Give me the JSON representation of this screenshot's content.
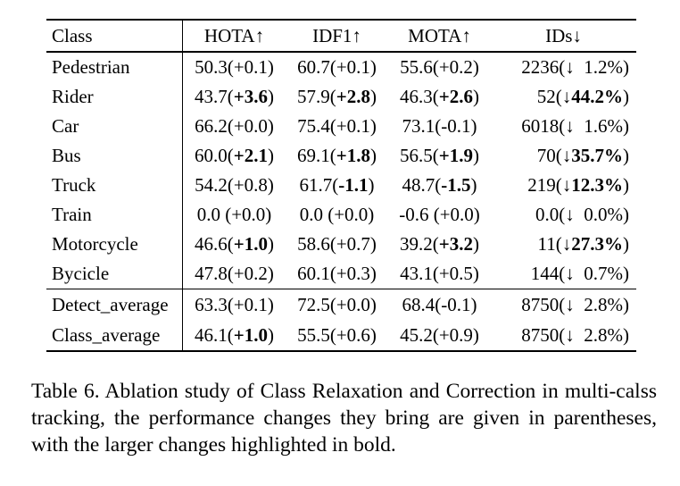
{
  "table": {
    "columns": [
      "Class",
      "HOTA↑",
      "IDF1↑",
      "MOTA↑",
      "IDs↓"
    ],
    "rows": [
      {
        "name": "Pedestrian",
        "hota": [
          {
            "t": "50.3(+0.1)",
            "b": false
          }
        ],
        "idf1": [
          {
            "t": "60.7(+0.1)",
            "b": false
          }
        ],
        "mota": [
          {
            "t": "55.6(+0.2)",
            "b": false
          }
        ],
        "ids": [
          {
            "t": "2236(↓  1.2%)",
            "b": false
          }
        ]
      },
      {
        "name": "Rider",
        "hota": [
          {
            "t": "43.7(",
            "b": false
          },
          {
            "t": "+3.6",
            "b": true
          },
          {
            "t": ")",
            "b": false
          }
        ],
        "idf1": [
          {
            "t": "57.9(",
            "b": false
          },
          {
            "t": "+2.8",
            "b": true
          },
          {
            "t": ")",
            "b": false
          }
        ],
        "mota": [
          {
            "t": "46.3(",
            "b": false
          },
          {
            "t": "+2.6",
            "b": true
          },
          {
            "t": ")",
            "b": false
          }
        ],
        "ids": [
          {
            "t": "52(↓",
            "b": false
          },
          {
            "t": "44.2%",
            "b": true
          },
          {
            "t": ")",
            "b": false
          }
        ]
      },
      {
        "name": "Car",
        "hota": [
          {
            "t": "66.2(+0.0)",
            "b": false
          }
        ],
        "idf1": [
          {
            "t": "75.4(+0.1)",
            "b": false
          }
        ],
        "mota": [
          {
            "t": "73.1(-0.1)",
            "b": false
          }
        ],
        "ids": [
          {
            "t": "6018(↓  1.6%)",
            "b": false
          }
        ]
      },
      {
        "name": "Bus",
        "hota": [
          {
            "t": "60.0(",
            "b": false
          },
          {
            "t": "+2.1",
            "b": true
          },
          {
            "t": ")",
            "b": false
          }
        ],
        "idf1": [
          {
            "t": "69.1(",
            "b": false
          },
          {
            "t": "+1.8",
            "b": true
          },
          {
            "t": ")",
            "b": false
          }
        ],
        "mota": [
          {
            "t": "56.5(",
            "b": false
          },
          {
            "t": "+1.9",
            "b": true
          },
          {
            "t": ")",
            "b": false
          }
        ],
        "ids": [
          {
            "t": "70(↓",
            "b": false
          },
          {
            "t": "35.7%",
            "b": true
          },
          {
            "t": ")",
            "b": false
          }
        ]
      },
      {
        "name": "Truck",
        "hota": [
          {
            "t": "54.2(+0.8)",
            "b": false
          }
        ],
        "idf1": [
          {
            "t": "61.7(",
            "b": false
          },
          {
            "t": "-1.1",
            "b": true
          },
          {
            "t": ")",
            "b": false
          }
        ],
        "mota": [
          {
            "t": "48.7(",
            "b": false
          },
          {
            "t": "-1.5",
            "b": true
          },
          {
            "t": ")",
            "b": false
          }
        ],
        "ids": [
          {
            "t": "219(↓",
            "b": false
          },
          {
            "t": "12.3%",
            "b": true
          },
          {
            "t": ")",
            "b": false
          }
        ]
      },
      {
        "name": "Train",
        "hota": [
          {
            "t": "0.0 (+0.0)",
            "b": false
          }
        ],
        "idf1": [
          {
            "t": "0.0 (+0.0)",
            "b": false
          }
        ],
        "mota": [
          {
            "t": "-0.6 (+0.0)",
            "b": false
          }
        ],
        "ids": [
          {
            "t": "0.0(↓  0.0%)",
            "b": false
          }
        ]
      },
      {
        "name": "Motorcycle",
        "hota": [
          {
            "t": "46.6(",
            "b": false
          },
          {
            "t": "+1.0",
            "b": true
          },
          {
            "t": ")",
            "b": false
          }
        ],
        "idf1": [
          {
            "t": "58.6(+0.7)",
            "b": false
          }
        ],
        "mota": [
          {
            "t": "39.2(",
            "b": false
          },
          {
            "t": "+3.2",
            "b": true
          },
          {
            "t": ")",
            "b": false
          }
        ],
        "ids": [
          {
            "t": "11(↓",
            "b": false
          },
          {
            "t": "27.3%",
            "b": true
          },
          {
            "t": ")",
            "b": false
          }
        ]
      },
      {
        "name": "Bycicle",
        "hota": [
          {
            "t": "47.8(+0.2)",
            "b": false
          }
        ],
        "idf1": [
          {
            "t": "60.1(+0.3)",
            "b": false
          }
        ],
        "mota": [
          {
            "t": "43.1(+0.5)",
            "b": false
          }
        ],
        "ids": [
          {
            "t": "144(↓  0.7%)",
            "b": false
          }
        ]
      }
    ],
    "summary": [
      {
        "name": "Detect_average",
        "hota": [
          {
            "t": "63.3(+0.1)",
            "b": false
          }
        ],
        "idf1": [
          {
            "t": "72.5(+0.0)",
            "b": false
          }
        ],
        "mota": [
          {
            "t": "68.4(-0.1)",
            "b": false
          }
        ],
        "ids": [
          {
            "t": "8750(↓  2.8%)",
            "b": false
          }
        ]
      },
      {
        "name": "Class_average",
        "hota": [
          {
            "t": "46.1(",
            "b": false
          },
          {
            "t": "+1.0",
            "b": true
          },
          {
            "t": ")",
            "b": false
          }
        ],
        "idf1": [
          {
            "t": "55.5(+0.6)",
            "b": false
          }
        ],
        "mota": [
          {
            "t": "45.2(+0.9)",
            "b": false
          }
        ],
        "ids": [
          {
            "t": "8750(↓  2.8%)",
            "b": false
          }
        ]
      }
    ]
  },
  "caption": {
    "text": "Table 6.  Ablation study of Class Relaxation and Correction in multi-calss tracking, the performance changes they bring are given in parentheses, with the larger changes highlighted in bold."
  }
}
